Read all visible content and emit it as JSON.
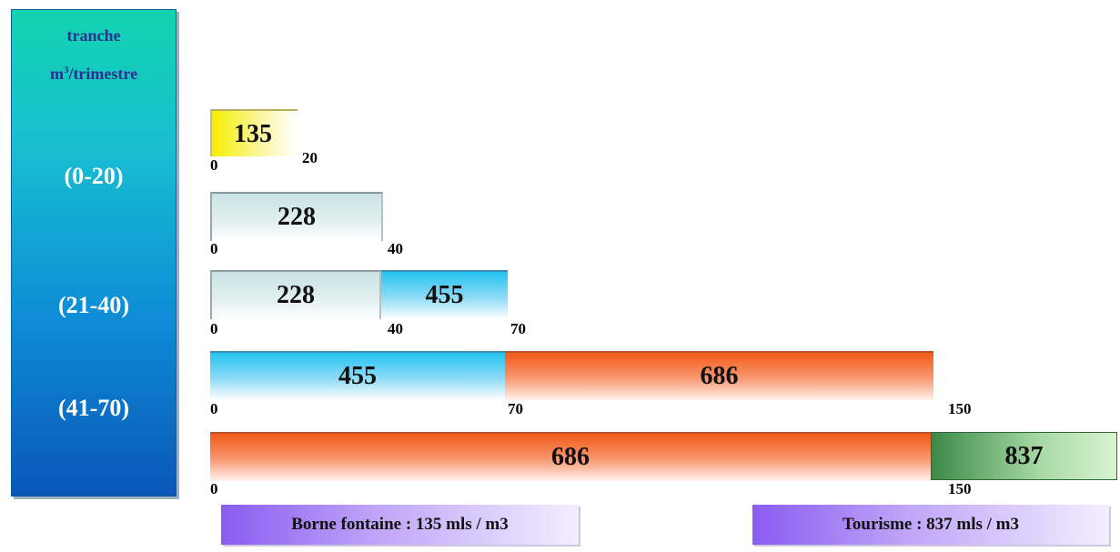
{
  "side_panel": {
    "title": "tranche",
    "unit_base": "m",
    "unit_sup": "3",
    "unit_rest": "/trimestre",
    "ranges": [
      "(0-20)",
      "(21-40)",
      "(41-70)"
    ]
  },
  "rows": [
    {
      "segments": [
        {
          "label": "135",
          "color": "yellow"
        }
      ],
      "ticks": [
        "0",
        "20"
      ]
    },
    {
      "segments": [
        {
          "label": "228",
          "color": "gray"
        }
      ],
      "ticks": [
        "0",
        "40"
      ]
    },
    {
      "segments": [
        {
          "label": "228",
          "color": "gray"
        },
        {
          "label": "455",
          "color": "blue"
        }
      ],
      "ticks": [
        "0",
        "40",
        "70"
      ]
    },
    {
      "segments": [
        {
          "label": "455",
          "color": "blue"
        },
        {
          "label": "686",
          "color": "orange"
        }
      ],
      "ticks": [
        "0",
        "70",
        "150"
      ]
    },
    {
      "segments": [
        {
          "label": "686",
          "color": "orange"
        },
        {
          "label": "837",
          "color": "green"
        }
      ],
      "ticks": [
        "0",
        "150"
      ]
    }
  ],
  "legend": {
    "borne_fontaine": "Borne fontaine : 135 mls / m3",
    "tourisme": "Tourisme : 837 mls / m3"
  }
}
